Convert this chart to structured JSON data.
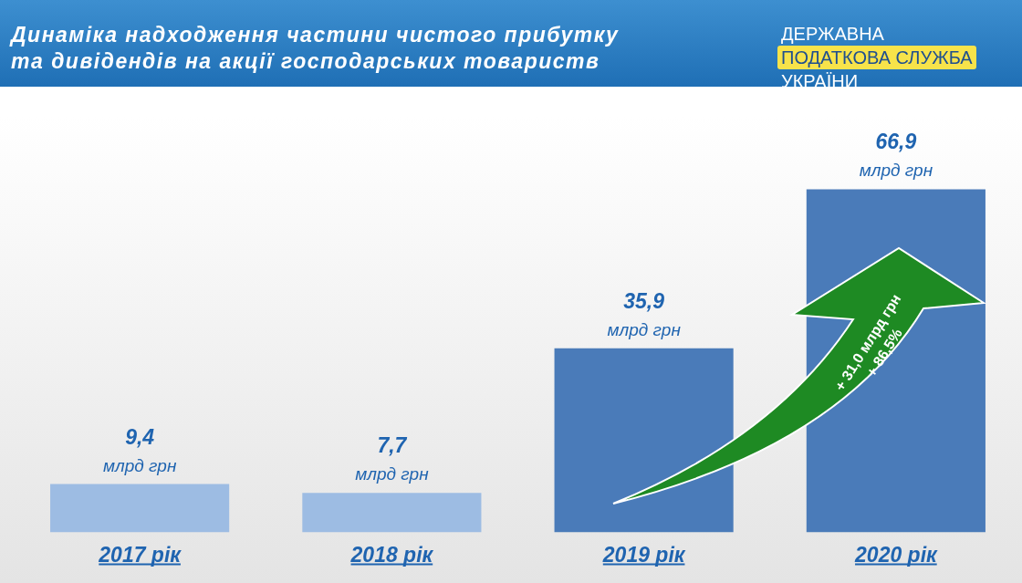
{
  "chart_data": {
    "type": "bar",
    "title": "Динаміка надходження частини чистого прибутку\nта дивідендів на акції господарських товариств",
    "categories": [
      "2017 рік",
      "2018 рік",
      "2019 рік",
      "2020 рік"
    ],
    "values": [
      9.4,
      7.7,
      35.9,
      66.9
    ],
    "colors": [
      "#9dbce3",
      "#9dbce3",
      "#4a7bb9",
      "#4a7bb9"
    ],
    "value_labels": [
      "9,4\nмлрд грн",
      "7,7\nмлрд грн",
      "35,9\nмлрд грн",
      "66,9\nмлрд грн"
    ],
    "grid": false,
    "legend": false,
    "annotations": [
      "ДЕРЖАВНА\nПОДАТКОВА СЛУЖБА\nУКРАЇНИ",
      "+ 31,0 млрд грн\n+ 86,5%"
    ]
  }
}
